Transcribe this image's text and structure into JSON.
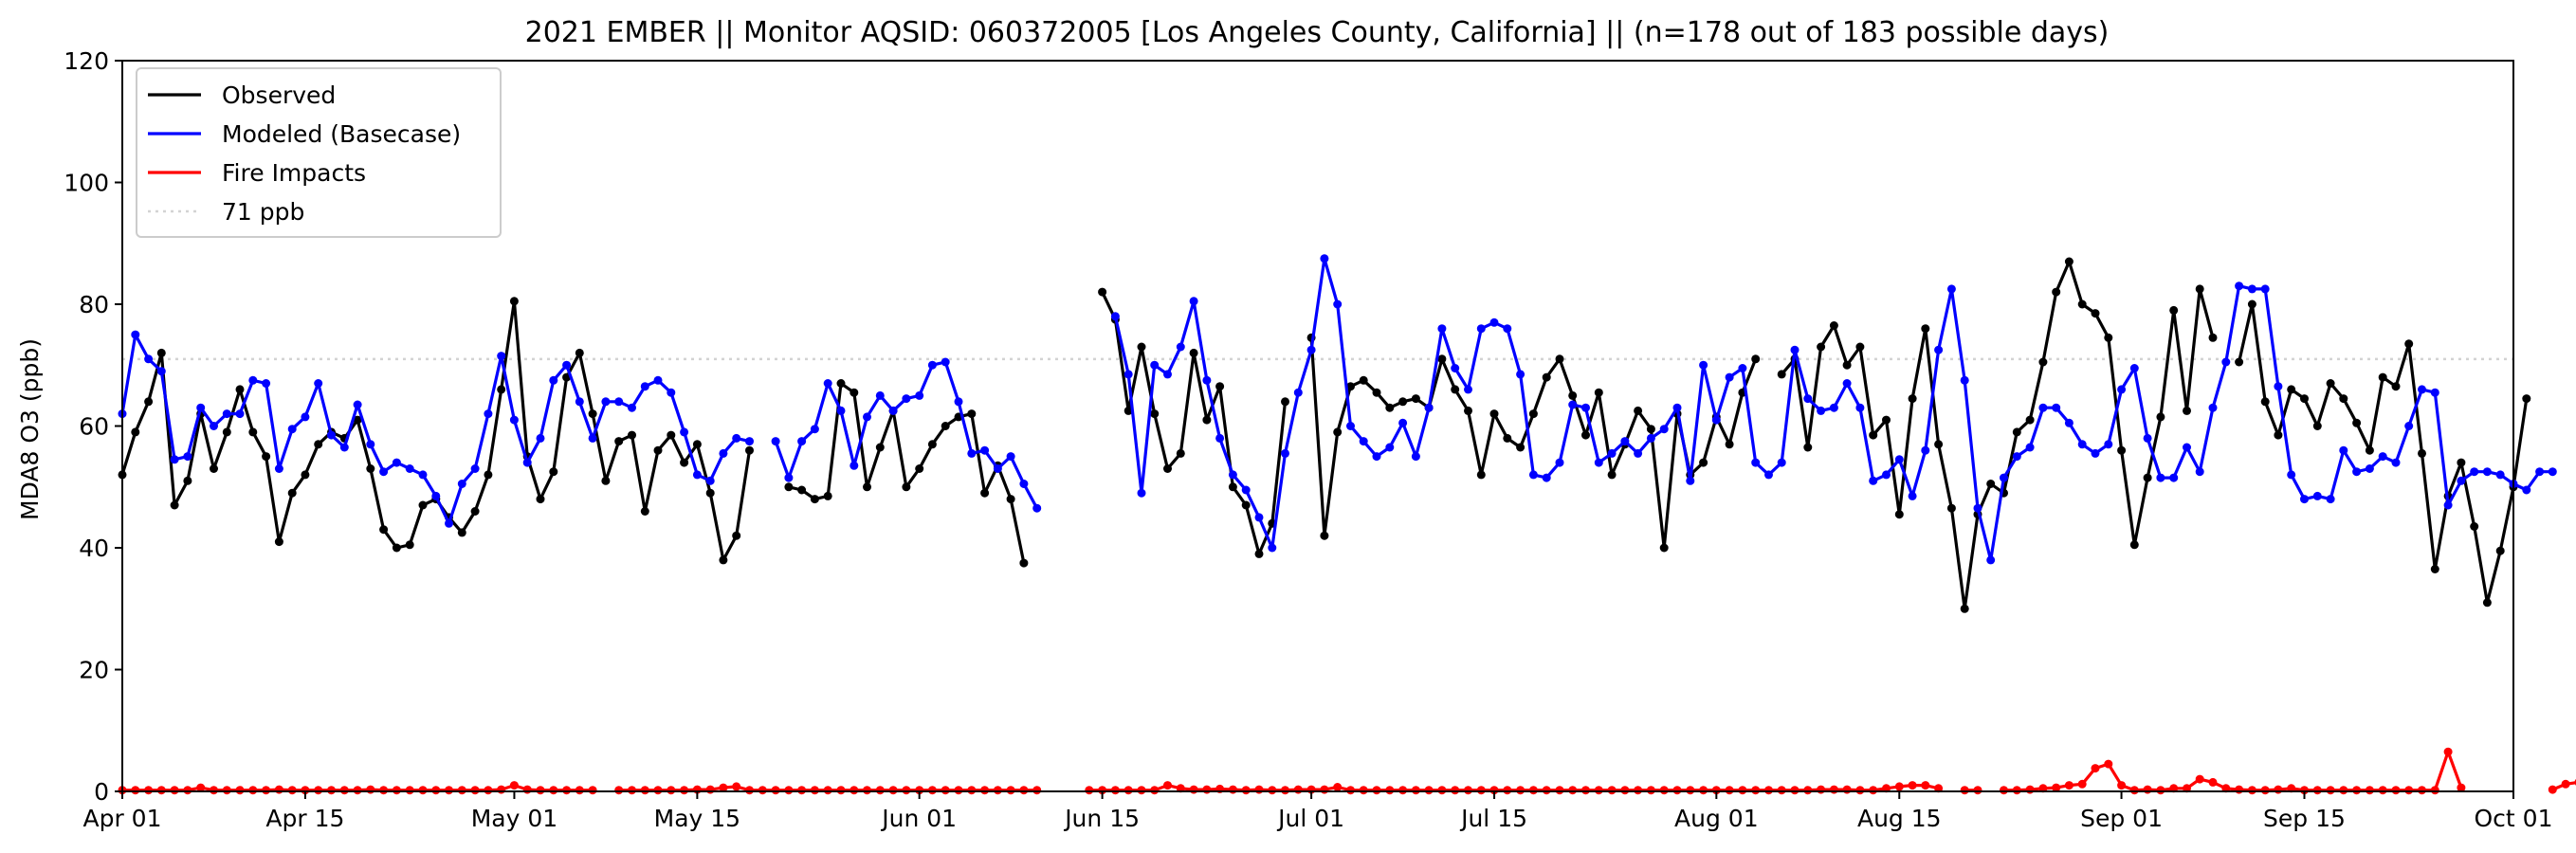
{
  "chart_data": {
    "type": "line",
    "title": "2021 EMBER || Monitor AQSID: 060372005 [Los Angeles County, California] || (n=178 out of 183 possible days)",
    "ylabel": "MDA8 O3 (ppb)",
    "xlabel": "",
    "ylim": [
      0,
      120
    ],
    "xlim": [
      "2021-04-01",
      "2021-10-01"
    ],
    "y_ticks": [
      "0",
      "20",
      "40",
      "60",
      "80",
      "100",
      "120"
    ],
    "x_ticks": [
      {
        "date": "2021-04-01",
        "label": "Apr 01"
      },
      {
        "date": "2021-04-15",
        "label": "Apr 15"
      },
      {
        "date": "2021-05-01",
        "label": "May 01"
      },
      {
        "date": "2021-05-15",
        "label": "May 15"
      },
      {
        "date": "2021-06-01",
        "label": "Jun 01"
      },
      {
        "date": "2021-06-15",
        "label": "Jun 15"
      },
      {
        "date": "2021-07-01",
        "label": "Jul 01"
      },
      {
        "date": "2021-07-15",
        "label": "Jul 15"
      },
      {
        "date": "2021-08-01",
        "label": "Aug 01"
      },
      {
        "date": "2021-08-15",
        "label": "Aug 15"
      },
      {
        "date": "2021-09-01",
        "label": "Sep 01"
      },
      {
        "date": "2021-09-15",
        "label": "Sep 15"
      },
      {
        "date": "2021-10-01",
        "label": "Oct 01"
      }
    ],
    "grid": false,
    "legend_position": "top-left",
    "dates_start": "2021-04-01",
    "daily_values_note": "values are daily from Apr 01 to Sep 30, null = no data",
    "series": [
      {
        "name": "Observed",
        "color": "#000000",
        "values": [
          52,
          59,
          64,
          72,
          47,
          51,
          62,
          53,
          59,
          66,
          59,
          55,
          41,
          49,
          52,
          57,
          59,
          58,
          61,
          53,
          43,
          40,
          40.5,
          47,
          48,
          45,
          42.5,
          46,
          52,
          66,
          80.5,
          55,
          48,
          52.5,
          68,
          72,
          62,
          51,
          57.5,
          58.5,
          46,
          56,
          58.5,
          54,
          57,
          49,
          38,
          42,
          56,
          null,
          null,
          50,
          49.5,
          48,
          48.5,
          67,
          65.5,
          50,
          56.5,
          62.5,
          50,
          53,
          57,
          60,
          61.5,
          62,
          49,
          53.5,
          48,
          37.5,
          null,
          null,
          null,
          null,
          null,
          82,
          77.5,
          62.5,
          73,
          62,
          53,
          55.5,
          72,
          61,
          66.5,
          50,
          47,
          39,
          44,
          64,
          null,
          74.5,
          42,
          59,
          66.5,
          67.5,
          65.5,
          63,
          64,
          64.5,
          63,
          71,
          66,
          62.5,
          52,
          62,
          58,
          56.5,
          62,
          68,
          71,
          65,
          58.5,
          65.5,
          52,
          57,
          62.5,
          59.5,
          40,
          62,
          52,
          54,
          61.5,
          57,
          65.5,
          71,
          null,
          68.5,
          71,
          56.5,
          73,
          76.5,
          70,
          73,
          58.5,
          61,
          45.5,
          64.5,
          76,
          57,
          46.5,
          30,
          45.5,
          50.5,
          49,
          59,
          61,
          70.5,
          82,
          87,
          80,
          78.5,
          74.5,
          56,
          40.5,
          51.5,
          61.5,
          79,
          62.5,
          82.5,
          74.5,
          null,
          70.5,
          80,
          64,
          58.5,
          66,
          64.5,
          60,
          67,
          64.5,
          60.5,
          56,
          68,
          66.5,
          73.5,
          55.5,
          36.5,
          48.5,
          54,
          43.5,
          31,
          39.5,
          50,
          64.5
        ]
      },
      {
        "name": "Modeled (Basecase)",
        "color": "#0000ff",
        "values": [
          62,
          75,
          71,
          69,
          54.5,
          55,
          63,
          60,
          62,
          62,
          67.5,
          67,
          53,
          59.5,
          61.5,
          67,
          58.5,
          56.5,
          63.5,
          57,
          52.5,
          54,
          53,
          52,
          48.5,
          44,
          50.5,
          53,
          62,
          71.5,
          61,
          54,
          58,
          67.5,
          70,
          64,
          58,
          64,
          64,
          63,
          66.5,
          67.5,
          65.5,
          59,
          52,
          51,
          55.5,
          58,
          57.5,
          null,
          57.5,
          51.5,
          57.5,
          59.5,
          67,
          62.5,
          53.5,
          61.5,
          65,
          62.5,
          64.5,
          65,
          70,
          70.5,
          64,
          55.5,
          56,
          53,
          55,
          50.5,
          46.5,
          null,
          null,
          null,
          null,
          null,
          78,
          68.5,
          49,
          70,
          68.5,
          73,
          80.5,
          67.5,
          58,
          52,
          49.5,
          45,
          40,
          55.5,
          65.5,
          72.5,
          87.5,
          80,
          60,
          57.5,
          55,
          56.5,
          60.5,
          55,
          63,
          76,
          69.5,
          66,
          76,
          77,
          76,
          68.5,
          52,
          51.5,
          54,
          63.5,
          63,
          54,
          55.5,
          57.5,
          55.5,
          58,
          59.5,
          63,
          51,
          70,
          61,
          68,
          69.5,
          54,
          52,
          54,
          72.5,
          64.5,
          62.5,
          63,
          67,
          63,
          51,
          52,
          54.5,
          48.5,
          56,
          72.5,
          82.5,
          67.5,
          46.5,
          38,
          51.5,
          55,
          56.5,
          63,
          63,
          60.5,
          57,
          55.5,
          57,
          66,
          69.5,
          58,
          51.5,
          51.5,
          56.5,
          52.5,
          63,
          70.5,
          83,
          82.5,
          82.5,
          66.5,
          52,
          48,
          48.5,
          48,
          56,
          52.5,
          53,
          55,
          54,
          60,
          66,
          65.5,
          47,
          51,
          52.5,
          52.5,
          52,
          50.5,
          49.5,
          52.5,
          52.5
        ]
      },
      {
        "name": "Fire Impacts",
        "color": "#ff0000",
        "values": [
          0.2,
          0.2,
          0.2,
          0.2,
          0.2,
          0.2,
          0.6,
          0.2,
          0.2,
          0.2,
          0.2,
          0.2,
          0.3,
          0.2,
          0.2,
          0.2,
          0.2,
          0.2,
          0.2,
          0.3,
          0.2,
          0.2,
          0.2,
          0.2,
          0.2,
          0.2,
          0.2,
          0.2,
          0.2,
          0.3,
          1.0,
          0.3,
          0.2,
          0.2,
          0.2,
          0.2,
          0.2,
          null,
          0.2,
          0.2,
          0.2,
          0.2,
          0.2,
          0.2,
          0.3,
          0.3,
          0.6,
          0.8,
          0.2,
          0.2,
          0.2,
          0.2,
          0.2,
          0.2,
          0.2,
          0.2,
          0.2,
          0.2,
          0.2,
          0.2,
          0.2,
          0.2,
          0.2,
          0.2,
          0.2,
          0.2,
          0.2,
          0.2,
          0.2,
          0.2,
          0.2,
          null,
          null,
          null,
          0.2,
          0.2,
          0.2,
          0.2,
          0.2,
          0.2,
          1.0,
          0.5,
          0.3,
          0.3,
          0.4,
          0.3,
          0.2,
          0.3,
          0.2,
          0.2,
          0.3,
          0.3,
          0.3,
          0.7,
          0.2,
          0.2,
          0.2,
          0.2,
          0.2,
          0.2,
          0.2,
          0.2,
          0.2,
          0.2,
          0.2,
          0.2,
          0.2,
          0.2,
          0.2,
          0.2,
          0.2,
          0.2,
          0.2,
          0.2,
          0.2,
          0.2,
          0.2,
          0.2,
          0.2,
          0.2,
          0.2,
          0.2,
          0.2,
          0.2,
          0.2,
          0.2,
          0.2,
          0.2,
          0.2,
          0.2,
          0.3,
          0.3,
          0.3,
          0.2,
          0.2,
          0.5,
          0.8,
          1.0,
          1.0,
          0.5,
          null,
          0.2,
          0.2,
          null,
          0.2,
          0.2,
          0.3,
          0.5,
          0.6,
          1.0,
          1.2,
          3.8,
          4.5,
          1.0,
          0.2,
          0.3,
          0.2,
          0.5,
          0.5,
          2.0,
          1.5,
          0.5,
          0.3,
          0.2,
          0.2,
          0.3,
          0.5,
          0.2,
          0.2,
          0.2,
          0.2,
          0.2,
          0.2,
          0.2,
          0.2,
          0.2,
          0.2,
          0.2,
          6.5,
          0.6,
          null,
          null,
          null,
          null,
          null,
          null,
          0.3,
          1.2,
          1.5
        ]
      }
    ],
    "reference_lines": [
      {
        "name": "71 ppb",
        "y": 71,
        "color": "#d3d3d3",
        "style": "dotted"
      }
    ]
  }
}
